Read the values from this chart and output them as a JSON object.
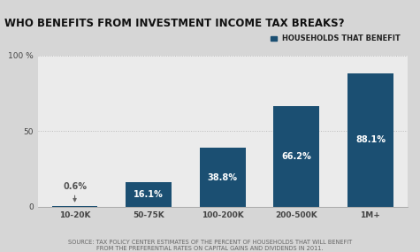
{
  "title": "WHO BENEFITS FROM INVESTMENT INCOME TAX BREAKS?",
  "categories": [
    "10-20K",
    "50-75K",
    "100-200K",
    "200-500K",
    "1M+"
  ],
  "values": [
    0.6,
    16.1,
    38.8,
    66.2,
    88.1
  ],
  "bar_color": "#1b4f72",
  "fig_bg_color": "#d6d6d6",
  "title_bg_color": "#d6d6d6",
  "plot_bg_color": "#ebebeb",
  "ylim": [
    0,
    100
  ],
  "yticks": [
    0,
    50,
    100
  ],
  "legend_label": "HOUSEHOLDS THAT BENEFIT",
  "source_text": "SOURCE: TAX POLICY CENTER ESTIMATES OF THE PERCENT OF HOUSEHOLDS THAT WILL BENEFIT\nFROM THE PREFERENTIAL RATES ON CAPITAL GAINS AND DIVIDENDS IN 2011.",
  "label_first": "0.6%",
  "bar_labels": [
    "16.1%",
    "38.8%",
    "66.2%",
    "88.1%"
  ],
  "title_fontsize": 8.5,
  "label_fontsize": 7.0,
  "tick_fontsize": 6.5,
  "legend_fontsize": 6.0,
  "source_fontsize": 4.8,
  "arrow_color": "#666666",
  "label_outside_color": "#555555",
  "grid_color": "#bbbbbb",
  "spine_color": "#999999",
  "tick_color": "#444444"
}
